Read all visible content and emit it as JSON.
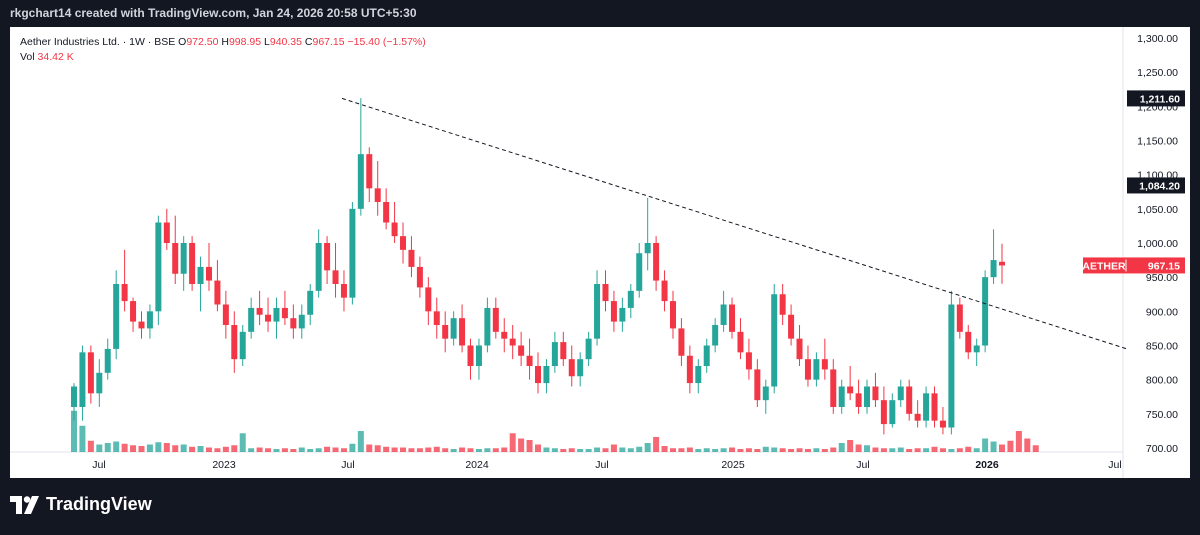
{
  "header": {
    "text": "rkgchart14 created with TradingView.com, Jan 24, 2026 20:58 UTC+5:30"
  },
  "legend": {
    "symbol": "Aether Industries Ltd. · 1W · BSE",
    "open_label": "O",
    "open": "972.50",
    "high_label": "H",
    "high": "998.95",
    "low_label": "L",
    "low": "940.35",
    "close_label": "C",
    "close": "967.15",
    "change": "−15.40 (−1.57%)",
    "vol_label": "Vol",
    "vol": "34.42 K"
  },
  "footer": {
    "brand": "TradingView"
  },
  "colors": {
    "up": "#26a69a",
    "down": "#f23645",
    "trendline": "#131722",
    "axis_text": "#131722",
    "badge_dark": "#131722",
    "badge_red": "#f23645"
  },
  "chart_data": {
    "type": "candlestick",
    "y_axis": {
      "ticks": [
        "1,300.00",
        "1,250.00",
        "1,200.00",
        "1,150.00",
        "1,100.00",
        "1,050.00",
        "1,000.00",
        "950.00",
        "900.00",
        "850.00",
        "800.00",
        "750.00",
        "700.00"
      ],
      "ylim": [
        700,
        1300
      ]
    },
    "x_axis": {
      "ticks": [
        "Jul",
        "2023",
        "Jul",
        "2024",
        "Jul",
        "2025",
        "Jul",
        "2026",
        "Jul"
      ],
      "bold_ticks": [
        "2026"
      ]
    },
    "price_badges": [
      {
        "text": "1,211.60",
        "value": 1211.6,
        "style": "dark"
      },
      {
        "text": "1,084.20",
        "value": 1084.2,
        "style": "dark"
      }
    ],
    "last_price_badge": {
      "symbol": "AETHER",
      "text": "967.15",
      "value": 967.15
    },
    "trendline": {
      "from": {
        "x": "2023-06",
        "y": 1211.6
      },
      "to": {
        "x": "2026-06",
        "y": 845
      },
      "style": "dashed"
    },
    "ohlc": [
      [
        790,
        795,
        740,
        760,
        "u"
      ],
      [
        760,
        850,
        740,
        840,
        "u"
      ],
      [
        840,
        850,
        765,
        780,
        "d"
      ],
      [
        780,
        830,
        760,
        810,
        "u"
      ],
      [
        810,
        860,
        800,
        845,
        "u"
      ],
      [
        845,
        960,
        830,
        940,
        "u"
      ],
      [
        940,
        990,
        900,
        915,
        "d"
      ],
      [
        915,
        920,
        870,
        885,
        "d"
      ],
      [
        885,
        900,
        860,
        875,
        "d"
      ],
      [
        875,
        910,
        860,
        900,
        "u"
      ],
      [
        900,
        1040,
        880,
        1030,
        "u"
      ],
      [
        1030,
        1050,
        990,
        1000,
        "d"
      ],
      [
        1000,
        1040,
        940,
        955,
        "d"
      ],
      [
        955,
        1010,
        930,
        1000,
        "u"
      ],
      [
        1000,
        1010,
        930,
        940,
        "d"
      ],
      [
        940,
        980,
        900,
        965,
        "u"
      ],
      [
        965,
        1000,
        930,
        945,
        "d"
      ],
      [
        945,
        975,
        900,
        910,
        "d"
      ],
      [
        910,
        930,
        860,
        880,
        "d"
      ],
      [
        880,
        900,
        810,
        830,
        "d"
      ],
      [
        830,
        880,
        820,
        870,
        "u"
      ],
      [
        870,
        920,
        860,
        905,
        "u"
      ],
      [
        905,
        930,
        880,
        895,
        "d"
      ],
      [
        895,
        920,
        870,
        885,
        "d"
      ],
      [
        885,
        920,
        860,
        905,
        "u"
      ],
      [
        905,
        930,
        880,
        890,
        "d"
      ],
      [
        890,
        910,
        860,
        875,
        "d"
      ],
      [
        875,
        910,
        860,
        895,
        "u"
      ],
      [
        895,
        940,
        880,
        930,
        "u"
      ],
      [
        930,
        1020,
        920,
        1000,
        "u"
      ],
      [
        1000,
        1010,
        940,
        960,
        "d"
      ],
      [
        960,
        1000,
        920,
        940,
        "d"
      ],
      [
        940,
        960,
        900,
        920,
        "d"
      ],
      [
        920,
        1060,
        910,
        1050,
        "u"
      ],
      [
        1050,
        1212,
        1040,
        1130,
        "u"
      ],
      [
        1130,
        1140,
        1060,
        1080,
        "d"
      ],
      [
        1080,
        1120,
        1040,
        1060,
        "d"
      ],
      [
        1060,
        1080,
        1020,
        1030,
        "d"
      ],
      [
        1030,
        1060,
        1000,
        1010,
        "d"
      ],
      [
        1010,
        1030,
        970,
        990,
        "d"
      ],
      [
        990,
        1010,
        950,
        965,
        "d"
      ],
      [
        965,
        980,
        920,
        935,
        "d"
      ],
      [
        935,
        950,
        880,
        900,
        "d"
      ],
      [
        900,
        920,
        860,
        880,
        "d"
      ],
      [
        880,
        900,
        840,
        860,
        "d"
      ],
      [
        860,
        900,
        850,
        890,
        "u"
      ],
      [
        890,
        910,
        840,
        850,
        "d"
      ],
      [
        850,
        860,
        800,
        820,
        "d"
      ],
      [
        820,
        860,
        800,
        850,
        "u"
      ],
      [
        850,
        920,
        840,
        905,
        "u"
      ],
      [
        905,
        920,
        860,
        870,
        "d"
      ],
      [
        870,
        890,
        840,
        860,
        "d"
      ],
      [
        860,
        880,
        830,
        850,
        "d"
      ],
      [
        850,
        870,
        820,
        835,
        "d"
      ],
      [
        835,
        860,
        800,
        820,
        "d"
      ],
      [
        820,
        840,
        780,
        795,
        "d"
      ],
      [
        795,
        830,
        780,
        820,
        "u"
      ],
      [
        820,
        870,
        810,
        855,
        "u"
      ],
      [
        855,
        870,
        820,
        830,
        "d"
      ],
      [
        830,
        850,
        790,
        805,
        "d"
      ],
      [
        805,
        840,
        790,
        830,
        "u"
      ],
      [
        830,
        870,
        820,
        860,
        "u"
      ],
      [
        860,
        960,
        850,
        940,
        "u"
      ],
      [
        940,
        960,
        900,
        915,
        "d"
      ],
      [
        915,
        930,
        870,
        885,
        "d"
      ],
      [
        885,
        920,
        870,
        905,
        "u"
      ],
      [
        905,
        940,
        890,
        930,
        "u"
      ],
      [
        930,
        1000,
        920,
        985,
        "u"
      ],
      [
        985,
        1066,
        960,
        1000,
        "u"
      ],
      [
        1000,
        1010,
        930,
        945,
        "d"
      ],
      [
        945,
        960,
        900,
        915,
        "d"
      ],
      [
        915,
        930,
        860,
        875,
        "d"
      ],
      [
        875,
        890,
        820,
        835,
        "d"
      ],
      [
        835,
        850,
        780,
        795,
        "d"
      ],
      [
        795,
        830,
        780,
        820,
        "u"
      ],
      [
        820,
        860,
        810,
        850,
        "u"
      ],
      [
        850,
        890,
        840,
        880,
        "u"
      ],
      [
        880,
        930,
        870,
        910,
        "u"
      ],
      [
        910,
        920,
        860,
        870,
        "d"
      ],
      [
        870,
        890,
        830,
        840,
        "d"
      ],
      [
        840,
        860,
        800,
        815,
        "d"
      ],
      [
        815,
        830,
        760,
        770,
        "d"
      ],
      [
        770,
        800,
        750,
        790,
        "u"
      ],
      [
        790,
        940,
        780,
        925,
        "u"
      ],
      [
        925,
        940,
        880,
        895,
        "d"
      ],
      [
        895,
        910,
        850,
        860,
        "d"
      ],
      [
        860,
        880,
        820,
        830,
        "d"
      ],
      [
        830,
        850,
        790,
        800,
        "d"
      ],
      [
        800,
        840,
        790,
        830,
        "u"
      ],
      [
        830,
        860,
        800,
        815,
        "d"
      ],
      [
        815,
        830,
        750,
        760,
        "d"
      ],
      [
        760,
        800,
        750,
        790,
        "u"
      ],
      [
        790,
        820,
        770,
        780,
        "d"
      ],
      [
        780,
        800,
        750,
        760,
        "d"
      ],
      [
        760,
        800,
        750,
        790,
        "u"
      ],
      [
        790,
        810,
        760,
        770,
        "d"
      ],
      [
        770,
        790,
        720,
        735,
        "d"
      ],
      [
        735,
        780,
        730,
        770,
        "u"
      ],
      [
        770,
        800,
        760,
        790,
        "u"
      ],
      [
        790,
        800,
        740,
        750,
        "d"
      ],
      [
        750,
        770,
        730,
        740,
        "d"
      ],
      [
        740,
        790,
        730,
        780,
        "u"
      ],
      [
        780,
        790,
        730,
        740,
        "d"
      ],
      [
        740,
        760,
        720,
        730,
        "d"
      ],
      [
        730,
        930,
        720,
        910,
        "u"
      ],
      [
        910,
        920,
        860,
        870,
        "d"
      ],
      [
        870,
        880,
        830,
        840,
        "d"
      ],
      [
        840,
        860,
        820,
        850,
        "u"
      ],
      [
        850,
        960,
        840,
        950,
        "u"
      ],
      [
        950,
        1020,
        940,
        975,
        "u"
      ],
      [
        972.5,
        998.95,
        940.35,
        967.15,
        "d"
      ]
    ],
    "volume": [
      0.55,
      0.35,
      0.15,
      0.1,
      0.12,
      0.14,
      0.11,
      0.09,
      0.08,
      0.1,
      0.13,
      0.12,
      0.09,
      0.1,
      0.07,
      0.08,
      0.06,
      0.05,
      0.07,
      0.09,
      0.25,
      0.05,
      0.06,
      0.05,
      0.04,
      0.05,
      0.04,
      0.06,
      0.04,
      0.05,
      0.07,
      0.06,
      0.05,
      0.11,
      0.28,
      0.1,
      0.09,
      0.07,
      0.06,
      0.06,
      0.05,
      0.05,
      0.06,
      0.07,
      0.05,
      0.04,
      0.06,
      0.05,
      0.04,
      0.05,
      0.05,
      0.06,
      0.25,
      0.18,
      0.16,
      0.1,
      0.06,
      0.05,
      0.04,
      0.05,
      0.04,
      0.04,
      0.06,
      0.05,
      0.1,
      0.06,
      0.05,
      0.07,
      0.12,
      0.2,
      0.08,
      0.05,
      0.05,
      0.06,
      0.04,
      0.05,
      0.04,
      0.05,
      0.06,
      0.04,
      0.05,
      0.04,
      0.07,
      0.06,
      0.05,
      0.04,
      0.05,
      0.04,
      0.05,
      0.04,
      0.06,
      0.12,
      0.16,
      0.1,
      0.09,
      0.06,
      0.05,
      0.05,
      0.06,
      0.04,
      0.05,
      0.05,
      0.07,
      0.05,
      0.04,
      0.05,
      0.07,
      0.05,
      0.18,
      0.14,
      0.1,
      0.15,
      0.28,
      0.18,
      0.09
    ]
  }
}
